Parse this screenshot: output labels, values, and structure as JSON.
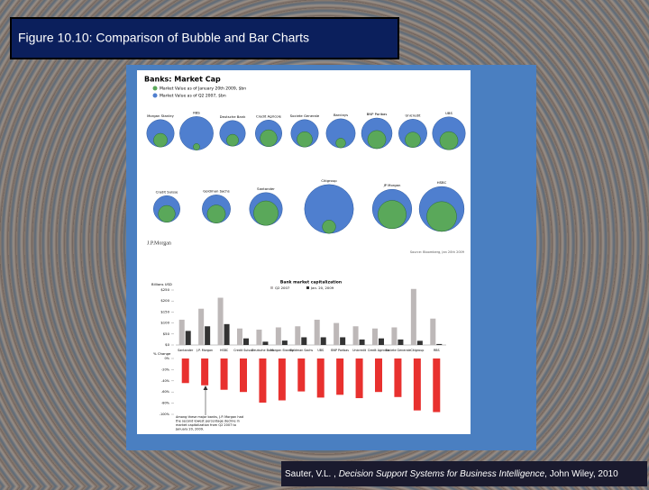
{
  "slide": {
    "title": "Figure 10.10:  Comparison of Bubble and Bar Charts",
    "citation": {
      "author": "Sauter, V.L. , ",
      "book": "Decision Support Systems for Business Intelligence",
      "publisher": ", John Wiley, 2010"
    }
  },
  "bubble_chart": {
    "title": "Banks: Market Cap",
    "legend": [
      "Market Value as of January 20th 2009, $bn",
      "Market Value as of Q2 2007, $bn"
    ],
    "colors": [
      "#5aa85a",
      "#4f7fcf"
    ],
    "banks": [
      "Morgan Stanley",
      "RBS",
      "Deutsche Bank",
      "Credit Agricole",
      "Societe Generale",
      "Barclays",
      "BNP Paribas",
      "Unicredit",
      "UBS",
      "Credit Suisse",
      "Goldman Sachs",
      "Santander",
      "Citigroup",
      "JP Morgan",
      "HSBC"
    ],
    "values_2009": [
      20,
      4.5,
      15,
      30,
      25,
      10,
      35,
      25,
      35,
      30,
      35,
      64,
      19,
      85,
      95
    ],
    "values_2007": [
      80,
      120,
      70,
      75,
      80,
      90,
      100,
      85,
      115,
      75,
      85,
      115,
      255,
      165,
      215
    ],
    "logo": "J.P.Morgan",
    "source": "Source: Bloomberg, Jan 20th 2009"
  },
  "bar_chart": {
    "type": "bar",
    "title": "Bank market capitalization",
    "y_label": "Billions USD",
    "categories": [
      "Santander",
      "J.P. Morgan",
      "HSBC",
      "Credit Suisse",
      "Deutsche Bank",
      "Morgan Stanley",
      "Goldman Sachs",
      "UBS",
      "BNP Paribas",
      "Unicredit",
      "Credit Agricole",
      "Societe Generale",
      "Citigroup",
      "RBS"
    ],
    "series": [
      {
        "name": "Q2 2007",
        "color": "#bdb8b8",
        "values": [
          115,
          165,
          215,
          75,
          70,
          80,
          85,
          115,
          100,
          85,
          75,
          80,
          255,
          120
        ]
      },
      {
        "name": "Jan. 20, 2009",
        "color": "#333333",
        "values": [
          64,
          85,
          95,
          30,
          15,
          20,
          35,
          35,
          35,
          25,
          30,
          25,
          19,
          4.5
        ]
      }
    ],
    "ylim": [
      0,
      250
    ],
    "yticks": [
      {
        "value": 0,
        "label": "$0"
      },
      {
        "value": 50,
        "label": "$50"
      },
      {
        "value": 100,
        "label": "$100"
      },
      {
        "value": 150,
        "label": "$150"
      },
      {
        "value": 200,
        "label": "$200"
      },
      {
        "value": 250,
        "label": "$250"
      }
    ],
    "change_label": "% Change",
    "change_color": "#e8312f",
    "change_values": [
      -44,
      -48,
      -56,
      -60,
      -79,
      -75,
      -59,
      -70,
      -65,
      -71,
      -60,
      -69,
      -93,
      -96
    ],
    "change_ylim": [
      -100,
      0
    ],
    "change_ticks": [
      {
        "value": 0,
        "label": "0%"
      },
      {
        "value": -20,
        "label": "-20%"
      },
      {
        "value": -40,
        "label": "-40%"
      },
      {
        "value": -60,
        "label": "-60%"
      },
      {
        "value": -80,
        "label": "-80%"
      },
      {
        "value": -100,
        "label": "-100%"
      }
    ],
    "annotation": [
      "Among these major banks, J.P. Morgan had",
      "the second lowest percentage decline in",
      "market capitalization from Q2 2007 to",
      "January 20, 2009."
    ]
  }
}
